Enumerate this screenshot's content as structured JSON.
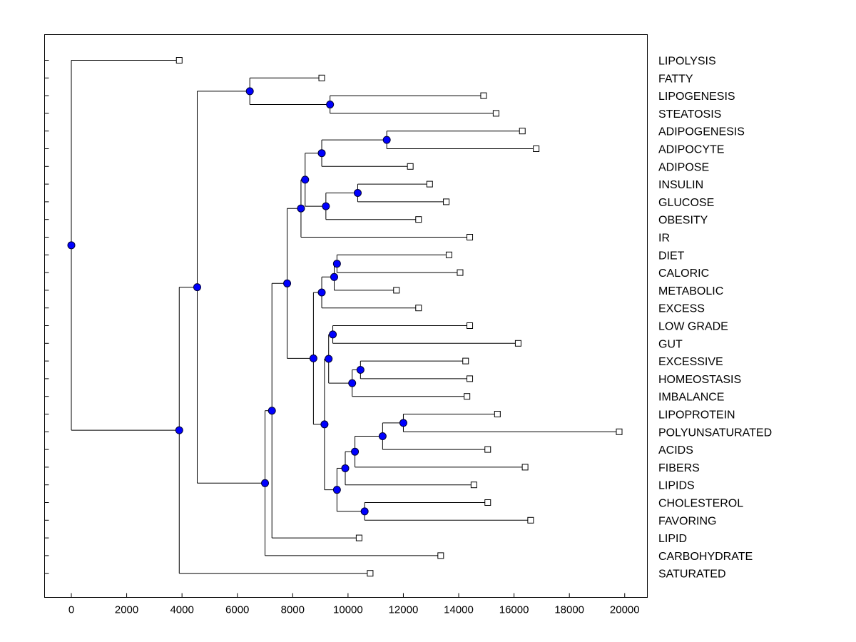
{
  "chart_data": {
    "type": "dendrogram",
    "title": "",
    "xlabel": "",
    "ylabel": "",
    "xlim": [
      -1000,
      20800
    ],
    "x_ticks": [
      0,
      2000,
      4000,
      6000,
      8000,
      10000,
      12000,
      14000,
      16000,
      18000,
      20000
    ],
    "x_tick_labels": [
      "0",
      "2000",
      "4000",
      "6000",
      "8000",
      "10000",
      "12000",
      "14000",
      "16000",
      "18000",
      "20000"
    ],
    "grid": false,
    "labels_position": "right",
    "leaves": [
      {
        "label": "LIPOLYSIS",
        "x": 3900
      },
      {
        "label": "FATTY",
        "x": 9050
      },
      {
        "label": "LIPOGENESIS",
        "x": 14900
      },
      {
        "label": "STEATOSIS",
        "x": 15350
      },
      {
        "label": "ADIPOGENESIS",
        "x": 16300
      },
      {
        "label": "ADIPOCYTE",
        "x": 16800
      },
      {
        "label": "ADIPOSE",
        "x": 12250
      },
      {
        "label": "INSULIN",
        "x": 12950
      },
      {
        "label": "GLUCOSE",
        "x": 13550
      },
      {
        "label": "OBESITY",
        "x": 12550
      },
      {
        "label": "IR",
        "x": 14400
      },
      {
        "label": "DIET",
        "x": 13650
      },
      {
        "label": "CALORIC",
        "x": 14050
      },
      {
        "label": "METABOLIC",
        "x": 11750
      },
      {
        "label": "EXCESS",
        "x": 12550
      },
      {
        "label": "LOW GRADE",
        "x": 14400
      },
      {
        "label": "GUT",
        "x": 16150
      },
      {
        "label": "EXCESSIVE",
        "x": 14250
      },
      {
        "label": "HOMEOSTASIS",
        "x": 14400
      },
      {
        "label": "IMBALANCE",
        "x": 14300
      },
      {
        "label": "LIPOPROTEIN",
        "x": 15400
      },
      {
        "label": "POLYUNSATURATED",
        "x": 19800
      },
      {
        "label": "ACIDS",
        "x": 15050
      },
      {
        "label": "FIBERS",
        "x": 16400
      },
      {
        "label": "LIPIDS",
        "x": 14550
      },
      {
        "label": "CHOLESTEROL",
        "x": 15050
      },
      {
        "label": "FAVORING",
        "x": 16600
      },
      {
        "label": "LIPID",
        "x": 10400
      },
      {
        "label": "CARBOHYDRATE",
        "x": 13350
      },
      {
        "label": "SATURATED",
        "x": 10800
      }
    ],
    "merges": [
      {
        "id": "n_lipo_ster",
        "x": 9350,
        "children": [
          "LIPOGENESIS",
          "STEATOSIS"
        ]
      },
      {
        "id": "n_fatty",
        "x": 6450,
        "children": [
          "FATTY",
          "n_lipo_ster"
        ]
      },
      {
        "id": "n_adipo2",
        "x": 11400,
        "children": [
          "ADIPOGENESIS",
          "ADIPOCYTE"
        ]
      },
      {
        "id": "n_adipo3",
        "x": 9050,
        "children": [
          "n_adipo2",
          "ADIPOSE"
        ]
      },
      {
        "id": "n_ins_glu",
        "x": 10350,
        "children": [
          "INSULIN",
          "GLUCOSE"
        ]
      },
      {
        "id": "n_ins_ob",
        "x": 9200,
        "children": [
          "n_ins_glu",
          "OBESITY"
        ]
      },
      {
        "id": "n_adip_ins",
        "x": 8450,
        "children": [
          "n_adipo3",
          "n_ins_ob"
        ]
      },
      {
        "id": "n_ir",
        "x": 8300,
        "children": [
          "n_adip_ins",
          "IR"
        ]
      },
      {
        "id": "n_diet_cal",
        "x": 9600,
        "children": [
          "DIET",
          "CALORIC"
        ]
      },
      {
        "id": "n_diet_met",
        "x": 9500,
        "children": [
          "n_diet_cal",
          "METABOLIC"
        ]
      },
      {
        "id": "n_diet_exc",
        "x": 9050,
        "children": [
          "n_diet_met",
          "EXCESS"
        ]
      },
      {
        "id": "n_low_gut",
        "x": 9450,
        "children": [
          "LOW GRADE",
          "GUT"
        ]
      },
      {
        "id": "n_exc_homeo",
        "x": 10450,
        "children": [
          "EXCESSIVE",
          "HOMEOSTASIS"
        ]
      },
      {
        "id": "n_exc_imb",
        "x": 10150,
        "children": [
          "n_exc_homeo",
          "IMBALANCE"
        ]
      },
      {
        "id": "n_gut_imb",
        "x": 9300,
        "children": [
          "n_low_gut",
          "n_exc_imb"
        ]
      },
      {
        "id": "n_lipop_poly",
        "x": 12000,
        "children": [
          "LIPOPROTEIN",
          "POLYUNSATURATED"
        ]
      },
      {
        "id": "n_poly_acids",
        "x": 11250,
        "children": [
          "n_lipop_poly",
          "ACIDS"
        ]
      },
      {
        "id": "n_acids_fib",
        "x": 10250,
        "children": [
          "n_poly_acids",
          "FIBERS"
        ]
      },
      {
        "id": "n_fib_lipids",
        "x": 9900,
        "children": [
          "n_acids_fib",
          "LIPIDS"
        ]
      },
      {
        "id": "n_chol_fav",
        "x": 10600,
        "children": [
          "CHOLESTEROL",
          "FAVORING"
        ]
      },
      {
        "id": "n_lipids_chol",
        "x": 9600,
        "children": [
          "n_fib_lipids",
          "n_chol_fav"
        ]
      },
      {
        "id": "n_gut_lipids",
        "x": 9150,
        "children": [
          "n_gut_imb",
          "n_lipids_chol"
        ]
      },
      {
        "id": "n_diet_gut",
        "x": 8750,
        "children": [
          "n_diet_exc",
          "n_gut_lipids"
        ]
      },
      {
        "id": "n_ir_diet",
        "x": 7800,
        "children": [
          "n_ir",
          "n_diet_gut"
        ]
      },
      {
        "id": "n_lipid",
        "x": 7250,
        "children": [
          "n_ir_diet",
          "LIPID"
        ]
      },
      {
        "id": "n_carb",
        "x": 7000,
        "children": [
          "n_lipid",
          "CARBOHYDRATE"
        ]
      },
      {
        "id": "n_fatty_carb",
        "x": 4550,
        "children": [
          "n_fatty",
          "n_carb"
        ]
      },
      {
        "id": "n_saturated",
        "x": 3900,
        "children": [
          "n_fatty_carb",
          "SATURATED"
        ]
      },
      {
        "id": "n_root",
        "x": 0,
        "children": [
          "LIPOLYSIS",
          "n_saturated"
        ]
      }
    ],
    "colors": {
      "node": "#0000ff",
      "line": "#000000",
      "leaf_marker": "#ffffff"
    }
  }
}
